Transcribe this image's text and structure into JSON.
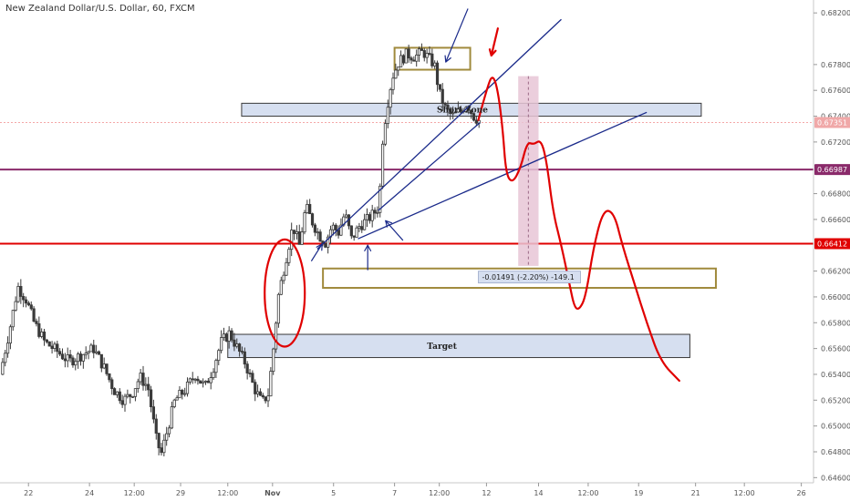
{
  "title": "New Zealand Dollar/U.S. Dollar, 60, FXCM",
  "colors": {
    "background": "#ffffff",
    "candle": "#3a3a3a",
    "trend_line": "#1a2a8a",
    "drawing_red": "#e00000",
    "zone_fill": "#d6dff0",
    "zone_border": "#3a3a3a",
    "gold_box": "#a08a3c",
    "purple_line": "#8a2a6a",
    "pink_fill": "#e8c6d6"
  },
  "chart_data": {
    "type": "candlestick",
    "y_axis": {
      "range": [
        0.6456,
        0.683
      ],
      "tick_labels": [
        "0.68200",
        "0.67800",
        "0.67600",
        "0.67400",
        "0.67200",
        "0.66800",
        "0.66600",
        "0.66200",
        "0.66000",
        "0.65800",
        "0.65600",
        "0.65400",
        "0.65200",
        "0.65000",
        "0.64800",
        "0.64600"
      ],
      "tick_values": [
        0.682,
        0.678,
        0.676,
        0.674,
        0.672,
        0.668,
        0.666,
        0.662,
        0.66,
        0.658,
        0.656,
        0.654,
        0.652,
        0.65,
        0.648,
        0.646
      ]
    },
    "x_axis": {
      "range": [
        0,
        1000
      ],
      "tick_labels": [
        "22",
        "24",
        "12:00",
        "29",
        "12:00",
        "Nov",
        "5",
        "7",
        "12:00",
        "12",
        "14",
        "12:00",
        "19",
        "21",
        "12:00",
        "26"
      ],
      "tick_positions": [
        35,
        110,
        165,
        222,
        280,
        335,
        410,
        485,
        540,
        598,
        662,
        723,
        785,
        855,
        915,
        985
      ]
    },
    "candle_range": [
      0,
      590
    ],
    "price_badges": [
      {
        "label": "0.67351",
        "value": 0.67351,
        "color": "#f0a8a8"
      },
      {
        "label": "0.66987",
        "value": 0.66987,
        "color": "#8a2a6a"
      },
      {
        "label": "0.66412",
        "value": 0.66412,
        "color": "#e00000"
      }
    ],
    "annotations": {
      "short_zone_label": "Short Zone",
      "target_label": "Target",
      "measure_label": "-0.01491 (-2.20%) -149.1"
    },
    "price_path": [
      [
        0,
        0.654
      ],
      [
        12,
        0.6575
      ],
      [
        22,
        0.6608
      ],
      [
        32,
        0.6598
      ],
      [
        42,
        0.658
      ],
      [
        55,
        0.6565
      ],
      [
        70,
        0.6558
      ],
      [
        85,
        0.655
      ],
      [
        100,
        0.6555
      ],
      [
        115,
        0.656
      ],
      [
        128,
        0.6545
      ],
      [
        140,
        0.6528
      ],
      [
        152,
        0.652
      ],
      [
        162,
        0.6525
      ],
      [
        172,
        0.6538
      ],
      [
        182,
        0.653
      ],
      [
        192,
        0.649
      ],
      [
        198,
        0.6478
      ],
      [
        205,
        0.6495
      ],
      [
        215,
        0.652
      ],
      [
        228,
        0.6528
      ],
      [
        240,
        0.654
      ],
      [
        252,
        0.653
      ],
      [
        262,
        0.6545
      ],
      [
        272,
        0.6565
      ],
      [
        282,
        0.6572
      ],
      [
        292,
        0.656
      ],
      [
        302,
        0.6548
      ],
      [
        312,
        0.653
      ],
      [
        322,
        0.6518
      ],
      [
        330,
        0.6525
      ],
      [
        336,
        0.656
      ],
      [
        342,
        0.66
      ],
      [
        350,
        0.6625
      ],
      [
        360,
        0.6655
      ],
      [
        368,
        0.664
      ],
      [
        376,
        0.667
      ],
      [
        384,
        0.6658
      ],
      [
        392,
        0.6648
      ],
      [
        400,
        0.6642
      ],
      [
        408,
        0.6655
      ],
      [
        416,
        0.665
      ],
      [
        424,
        0.6665
      ],
      [
        432,
        0.6645
      ],
      [
        442,
        0.6655
      ],
      [
        452,
        0.666
      ],
      [
        460,
        0.6665
      ],
      [
        466,
        0.667
      ],
      [
        470,
        0.672
      ],
      [
        475,
        0.6745
      ],
      [
        482,
        0.677
      ],
      [
        490,
        0.6782
      ],
      [
        500,
        0.6788
      ],
      [
        510,
        0.6786
      ],
      [
        520,
        0.679
      ],
      [
        528,
        0.6784
      ],
      [
        534,
        0.678
      ],
      [
        540,
        0.6758
      ],
      [
        548,
        0.6745
      ],
      [
        556,
        0.674
      ],
      [
        566,
        0.6744
      ],
      [
        574,
        0.675
      ],
      [
        582,
        0.674
      ],
      [
        590,
        0.6736
      ]
    ],
    "trend_lines": [
      {
        "from": [
          390,
          0.6637
        ],
        "to": [
          690,
          0.6815
        ]
      },
      {
        "from": [
          440,
          0.6645
        ],
        "to": [
          795,
          0.6743
        ]
      },
      {
        "from": [
          465,
          0.6667
        ],
        "to": [
          590,
          0.6735
        ]
      }
    ],
    "zones": [
      {
        "name": "short-zone",
        "x": [
          297,
          862
        ],
        "y": [
          0.674,
          0.675
        ]
      },
      {
        "name": "target-zone",
        "x": [
          280,
          848
        ],
        "y": [
          0.6553,
          0.6571
        ]
      }
    ],
    "boxes": [
      {
        "name": "top-consolidation-box",
        "x": [
          485,
          578
        ],
        "y": [
          0.6776,
          0.6793
        ]
      },
      {
        "name": "support-box",
        "x": [
          397,
          880
        ],
        "y": [
          0.6607,
          0.6622
        ]
      }
    ],
    "measure": {
      "x": [
        637,
        662
      ],
      "y": [
        0.6624,
        0.6771
      ]
    },
    "red_path": [
      [
        588,
        0.6737
      ],
      [
        600,
        0.6765
      ],
      [
        606,
        0.6772
      ],
      [
        612,
        0.676
      ],
      [
        618,
        0.673
      ],
      [
        622,
        0.6695
      ],
      [
        630,
        0.6688
      ],
      [
        640,
        0.67
      ],
      [
        648,
        0.672
      ],
      [
        656,
        0.6718
      ],
      [
        665,
        0.6722
      ],
      [
        672,
        0.6705
      ],
      [
        680,
        0.6665
      ],
      [
        690,
        0.664
      ],
      [
        700,
        0.661
      ],
      [
        706,
        0.6592
      ],
      [
        712,
        0.659
      ],
      [
        720,
        0.66
      ],
      [
        730,
        0.664
      ],
      [
        742,
        0.6668
      ],
      [
        755,
        0.6665
      ],
      [
        765,
        0.664
      ],
      [
        780,
        0.661
      ],
      [
        795,
        0.658
      ],
      [
        812,
        0.655
      ],
      [
        835,
        0.6535
      ]
    ],
    "red_ellipse": {
      "cx": 350,
      "cy": 0.6603,
      "rx": 22,
      "ry": 0.00415
    },
    "red_arrow": {
      "from": [
        612,
        0.6808
      ],
      "to": [
        604,
        0.6787
      ]
    },
    "blue_arrows": [
      {
        "from": [
          575,
          0.6823
        ],
        "to": [
          548,
          0.6782
        ]
      },
      {
        "from": [
          495,
          0.6644
        ],
        "to": [
          474,
          0.6659
        ]
      },
      {
        "from": [
          383,
          0.6628
        ],
        "to": [
          396,
          0.6641
        ]
      },
      {
        "from": [
          452,
          0.6621
        ],
        "to": [
          452,
          0.664
        ]
      }
    ]
  }
}
